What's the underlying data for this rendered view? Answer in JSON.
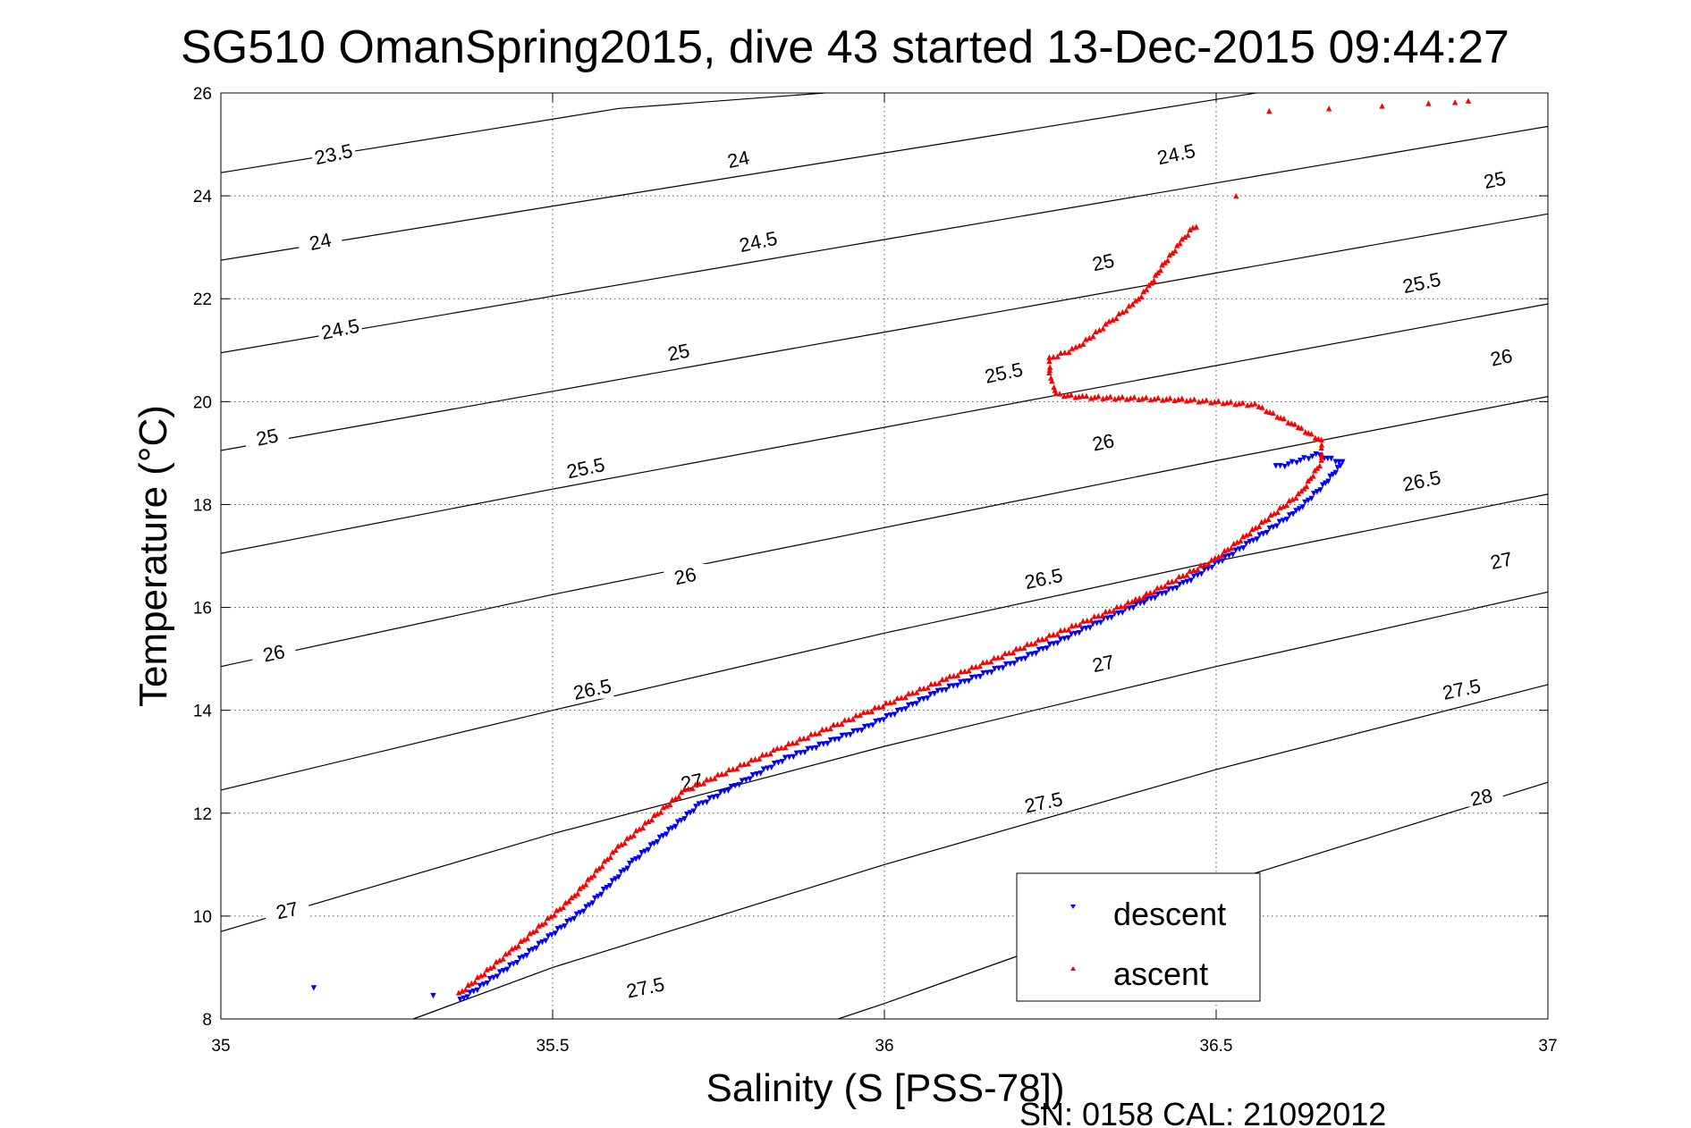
{
  "chart_data": {
    "type": "scatter",
    "title": "SG510 OmanSpring2015, dive 43 started 13-Dec-2015 09:44:27",
    "xlabel": "Salinity (S [PSS-78])",
    "ylabel": "Temperature (°C)",
    "xlim": [
      35,
      37
    ],
    "ylim": [
      8,
      26
    ],
    "x_ticks": [
      35,
      35.5,
      36,
      36.5,
      37
    ],
    "x_tick_labels": [
      "35",
      "35.5",
      "36",
      "36.5",
      "37"
    ],
    "y_ticks": [
      8,
      10,
      12,
      14,
      16,
      18,
      20,
      22,
      24,
      26
    ],
    "y_tick_labels": [
      "8",
      "10",
      "12",
      "14",
      "16",
      "18",
      "20",
      "22",
      "24",
      "26"
    ],
    "grid": true,
    "legend_position": "bottom-right",
    "footer": "SN: 0158  CAL: 21092012",
    "density_contours": [
      {
        "level": "23.5",
        "points": [
          [
            35,
            24.45
          ],
          [
            35.6,
            25.7
          ],
          [
            35.91,
            26
          ]
        ],
        "label_at": [
          35.17,
          24.8
        ]
      },
      {
        "level": "24",
        "points": [
          [
            35,
            22.75
          ],
          [
            35.5,
            23.8
          ],
          [
            36.08,
            25
          ],
          [
            36.56,
            26
          ]
        ],
        "label_at": [
          35.15,
          23.1
        ]
      },
      {
        "level": "24.5",
        "points": [
          [
            35,
            20.95
          ],
          [
            35.5,
            22.05
          ],
          [
            36,
            23.15
          ],
          [
            36.5,
            24.25
          ],
          [
            37,
            25.35
          ]
        ],
        "label_at": [
          35.18,
          21.4
        ]
      },
      {
        "level": "25",
        "points": [
          [
            35,
            19.05
          ],
          [
            35.5,
            20.2
          ],
          [
            36,
            21.35
          ],
          [
            36.5,
            22.5
          ],
          [
            37,
            23.65
          ]
        ],
        "label_at": [
          35.07,
          19.3
        ]
      },
      {
        "level": "25.5",
        "points": [
          [
            35,
            17.05
          ],
          [
            35.5,
            18.3
          ],
          [
            36,
            19.5
          ],
          [
            36.5,
            20.7
          ],
          [
            37,
            21.9
          ]
        ],
        "label_at": [
          35.55,
          18.7
        ]
      },
      {
        "level": "26",
        "points": [
          [
            35,
            14.85
          ],
          [
            35.5,
            16.25
          ],
          [
            36,
            17.55
          ],
          [
            36.5,
            18.85
          ],
          [
            37,
            20.1
          ]
        ],
        "label_at": [
          35.08,
          15.1
        ]
      },
      {
        "level": "26.5",
        "points": [
          [
            35,
            12.45
          ],
          [
            35.5,
            14.0
          ],
          [
            36,
            15.5
          ],
          [
            36.5,
            16.9
          ],
          [
            37,
            18.2
          ]
        ],
        "label_at": [
          35.56,
          14.4
        ]
      },
      {
        "level": "27",
        "points": [
          [
            35,
            9.7
          ],
          [
            35.5,
            11.6
          ],
          [
            36,
            13.3
          ],
          [
            36.5,
            14.85
          ],
          [
            37,
            16.3
          ]
        ],
        "label_at": [
          35.1,
          10.1
        ]
      },
      {
        "level": "27.5",
        "points": [
          [
            35.29,
            8
          ],
          [
            35.5,
            9.0
          ],
          [
            36,
            11.0
          ],
          [
            36.5,
            12.85
          ],
          [
            37,
            14.5
          ]
        ],
        "label_at": [
          35.64,
          8.6
        ]
      },
      {
        "level": "28",
        "points": [
          [
            35.93,
            8
          ],
          [
            36.0,
            8.3
          ],
          [
            36.5,
            10.6
          ],
          [
            37,
            12.6
          ]
        ],
        "label_at": [
          36.9,
          12.3
        ]
      }
    ],
    "extra_contour_labels": [
      {
        "level": "24",
        "at": [
          35.78,
          24.7
        ]
      },
      {
        "level": "24.5",
        "at": [
          36.44,
          24.8
        ]
      },
      {
        "level": "25",
        "at": [
          36.92,
          24.3
        ]
      },
      {
        "level": "24.5",
        "at": [
          35.81,
          23.1
        ]
      },
      {
        "level": "25",
        "at": [
          36.33,
          22.7
        ]
      },
      {
        "level": "25.5",
        "at": [
          36.81,
          22.3
        ]
      },
      {
        "level": "25",
        "at": [
          35.69,
          20.95
        ]
      },
      {
        "level": "25.5",
        "at": [
          36.18,
          20.55
        ]
      },
      {
        "level": "26",
        "at": [
          36.93,
          20.85
        ]
      },
      {
        "level": "26",
        "at": [
          35.7,
          16.6
        ]
      },
      {
        "level": "26",
        "at": [
          36.33,
          19.2
        ]
      },
      {
        "level": "26.5",
        "at": [
          36.24,
          16.55
        ]
      },
      {
        "level": "26.5",
        "at": [
          36.81,
          18.45
        ]
      },
      {
        "level": "27",
        "at": [
          35.71,
          12.6
        ]
      },
      {
        "level": "27",
        "at": [
          36.33,
          14.9
        ]
      },
      {
        "level": "27",
        "at": [
          36.93,
          16.9
        ]
      },
      {
        "level": "27.5",
        "at": [
          36.24,
          12.2
        ]
      },
      {
        "level": "27.5",
        "at": [
          36.87,
          14.4
        ]
      }
    ],
    "series": [
      {
        "name": "descent",
        "color": "#0000ff",
        "marker": "triangle-down",
        "path": [
          [
            35.36,
            8.4
          ],
          [
            35.45,
            9.2
          ],
          [
            35.55,
            10.2
          ],
          [
            35.62,
            11.1
          ],
          [
            35.72,
            12.2
          ],
          [
            35.85,
            13.1
          ],
          [
            35.97,
            13.7
          ],
          [
            36.08,
            14.4
          ],
          [
            36.2,
            15.0
          ],
          [
            36.33,
            15.8
          ],
          [
            36.45,
            16.5
          ],
          [
            36.55,
            17.3
          ],
          [
            36.62,
            17.9
          ],
          [
            36.66,
            18.4
          ],
          [
            36.69,
            18.85
          ],
          [
            36.65,
            19.0
          ],
          [
            36.59,
            18.75
          ]
        ],
        "isolated": [
          [
            35.14,
            8.6
          ],
          [
            35.32,
            8.45
          ]
        ]
      },
      {
        "name": "ascent",
        "color": "#ff0000",
        "marker": "triangle-up",
        "path": [
          [
            35.36,
            8.45
          ],
          [
            35.44,
            9.3
          ],
          [
            35.53,
            10.3
          ],
          [
            35.6,
            11.3
          ],
          [
            35.7,
            12.4
          ],
          [
            35.84,
            13.2
          ],
          [
            35.97,
            13.9
          ],
          [
            36.1,
            14.6
          ],
          [
            36.25,
            15.4
          ],
          [
            36.38,
            16.1
          ],
          [
            36.5,
            16.9
          ],
          [
            36.57,
            17.6
          ],
          [
            36.63,
            18.2
          ],
          [
            36.66,
            18.8
          ],
          [
            36.66,
            19.2
          ],
          [
            36.62,
            19.5
          ],
          [
            36.56,
            19.9
          ],
          [
            36.45,
            20.0
          ],
          [
            36.3,
            20.05
          ],
          [
            36.26,
            20.1
          ],
          [
            36.25,
            20.5
          ],
          [
            36.25,
            20.8
          ],
          [
            36.29,
            21.0
          ],
          [
            36.34,
            21.5
          ],
          [
            36.38,
            21.9
          ],
          [
            36.4,
            22.2
          ],
          [
            36.42,
            22.6
          ],
          [
            36.45,
            23.1
          ],
          [
            36.47,
            23.4
          ]
        ],
        "isolated": [
          [
            36.53,
            24.0
          ],
          [
            36.58,
            25.65
          ],
          [
            36.67,
            25.7
          ],
          [
            36.75,
            25.75
          ],
          [
            36.82,
            25.8
          ],
          [
            36.86,
            25.82
          ],
          [
            36.88,
            25.85
          ]
        ]
      }
    ]
  }
}
